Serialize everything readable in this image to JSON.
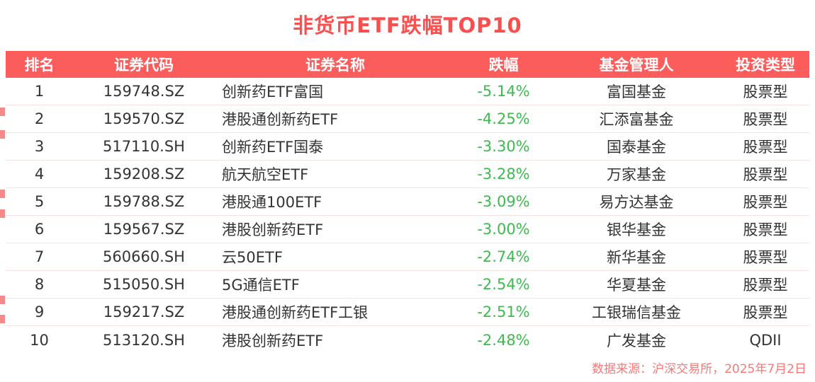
{
  "chart_data": {
    "type": "table",
    "title": "非货币ETF跌幅TOP10",
    "columns": [
      "排名",
      "证券代码",
      "证券名称",
      "跌幅",
      "基金管理人",
      "投资类型"
    ],
    "column_keys": [
      "rank",
      "code",
      "name",
      "change",
      "manager",
      "type"
    ],
    "rows": [
      {
        "rank": "1",
        "code": "159748.SZ",
        "name": "创新药ETF富国",
        "change": "-5.14%",
        "manager": "富国基金",
        "type": "股票型"
      },
      {
        "rank": "2",
        "code": "159570.SZ",
        "name": "港股通创新药ETF",
        "change": "-4.25%",
        "manager": "汇添富基金",
        "type": "股票型"
      },
      {
        "rank": "3",
        "code": "517110.SH",
        "name": "创新药ETF国泰",
        "change": "-3.30%",
        "manager": "国泰基金",
        "type": "股票型"
      },
      {
        "rank": "4",
        "code": "159208.SZ",
        "name": "航天航空ETF",
        "change": "-3.28%",
        "manager": "万家基金",
        "type": "股票型"
      },
      {
        "rank": "5",
        "code": "159788.SZ",
        "name": "港股通100ETF",
        "change": "-3.09%",
        "manager": "易方达基金",
        "type": "股票型"
      },
      {
        "rank": "6",
        "code": "159567.SZ",
        "name": "港股创新药ETF",
        "change": "-3.00%",
        "manager": "银华基金",
        "type": "股票型"
      },
      {
        "rank": "7",
        "code": "560660.SH",
        "name": "云50ETF",
        "change": "-2.74%",
        "manager": "新华基金",
        "type": "股票型"
      },
      {
        "rank": "8",
        "code": "515050.SH",
        "name": "5G通信ETF",
        "change": "-2.54%",
        "manager": "华夏基金",
        "type": "股票型"
      },
      {
        "rank": "9",
        "code": "159217.SZ",
        "name": "港股通创新药ETF工银",
        "change": "-2.51%",
        "manager": "工银瑞信基金",
        "type": "股票型"
      },
      {
        "rank": "10",
        "code": "513120.SH",
        "name": "港股创新药ETF",
        "change": "-2.48%",
        "manager": "广发基金",
        "type": "QDII"
      }
    ],
    "footnote": "数据来源：沪深交易所，2025年7月2日",
    "layout": {
      "grid": false,
      "header_position": "top",
      "legend": "none"
    }
  },
  "colors": {
    "accent": "#fb4f4f",
    "header-bg": "#fb5d5d",
    "decline": "#3cbc4f",
    "footer-text": "#fa7878",
    "row-border": "#f7e2e2",
    "body-text": "#333333"
  }
}
